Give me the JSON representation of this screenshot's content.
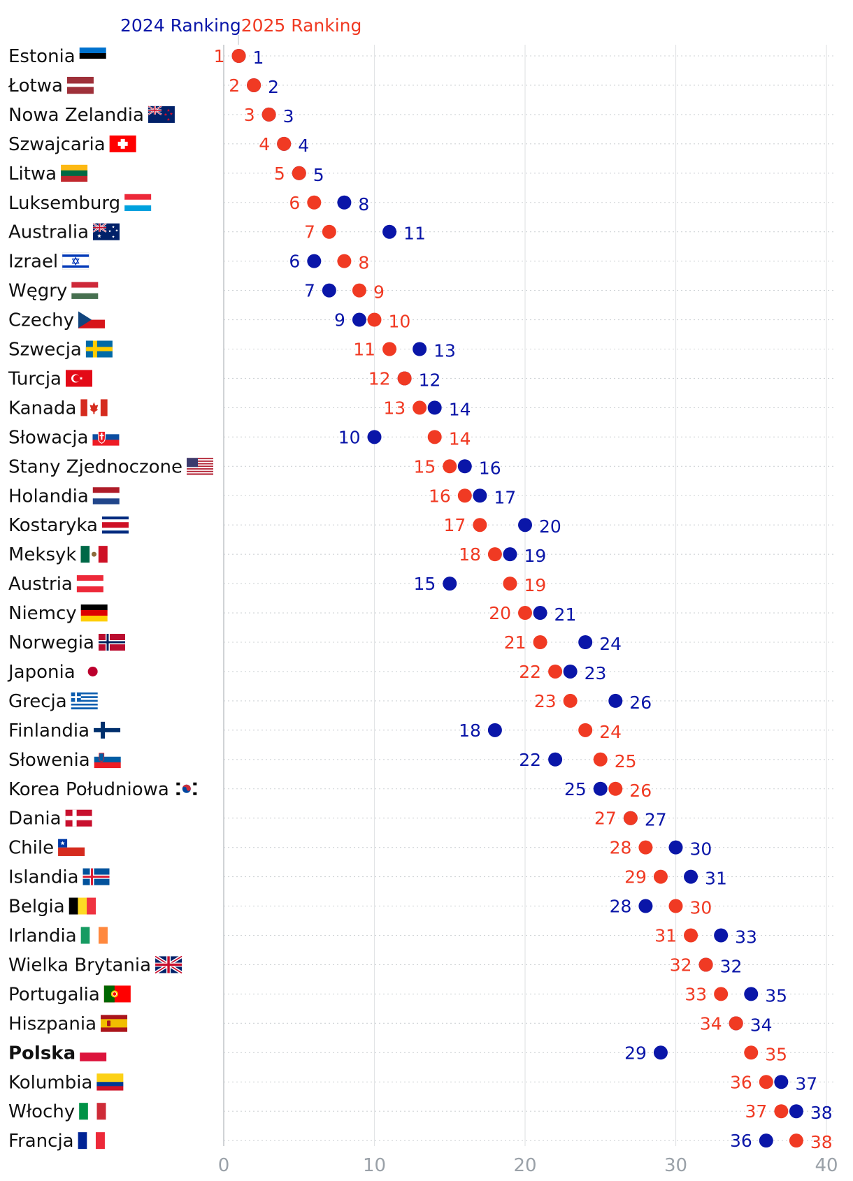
{
  "chart_data": {
    "type": "dumbbell",
    "title": "",
    "legend": [
      {
        "name": "2024 Ranking",
        "color": "#0a16a8"
      },
      {
        "name": "2025 Ranking",
        "color": "#f03a23"
      }
    ],
    "legend_position": "top-left",
    "xlim": [
      0,
      40
    ],
    "xticks": [
      "0",
      "10",
      "20",
      "30",
      "40"
    ],
    "grid": true,
    "highlight_country": "Polska",
    "colors": {
      "r2024": "#0a16a8",
      "r2025": "#f03a23",
      "tick": "#9aa1a8",
      "grid": "#cfd3d6",
      "axis": "#c4c8cc"
    },
    "rows": [
      {
        "country": "Estonia",
        "flag": "estonia-flag",
        "r2024": 1,
        "r2025": 1,
        "l2024": "1",
        "l2025": "1"
      },
      {
        "country": "Łotwa",
        "flag": "latvia-flag",
        "r2024": 2,
        "r2025": 2,
        "l2024": "2",
        "l2025": "2"
      },
      {
        "country": "Nowa Zelandia",
        "flag": "new-zealand-flag",
        "r2024": 3,
        "r2025": 3,
        "l2024": "3",
        "l2025": "3"
      },
      {
        "country": "Szwajcaria",
        "flag": "switzerland-flag",
        "r2024": 4,
        "r2025": 4,
        "l2024": "4",
        "l2025": "4"
      },
      {
        "country": "Litwa",
        "flag": "lithuania-flag",
        "r2024": 5,
        "r2025": 5,
        "l2024": "5",
        "l2025": "5"
      },
      {
        "country": "Luksemburg",
        "flag": "luxembourg-flag",
        "r2024": 8,
        "r2025": 6,
        "l2024": "8",
        "l2025": "6"
      },
      {
        "country": "Australia",
        "flag": "australia-flag",
        "r2024": 11,
        "r2025": 7,
        "l2024": "11",
        "l2025": "7"
      },
      {
        "country": "Izrael",
        "flag": "israel-flag",
        "r2024": 6,
        "r2025": 8,
        "l2024": "6",
        "l2025": "8"
      },
      {
        "country": "Węgry",
        "flag": "hungary-flag",
        "r2024": 7,
        "r2025": 9,
        "l2024": "7",
        "l2025": "9"
      },
      {
        "country": "Czechy",
        "flag": "czechia-flag",
        "r2024": 9,
        "r2025": 10,
        "l2024": "9",
        "l2025": "10"
      },
      {
        "country": "Szwecja",
        "flag": "sweden-flag",
        "r2024": 13,
        "r2025": 11,
        "l2024": "13",
        "l2025": "11"
      },
      {
        "country": "Turcja",
        "flag": "turkey-flag",
        "r2024": 12,
        "r2025": 12,
        "l2024": "12",
        "l2025": "12"
      },
      {
        "country": "Kanada",
        "flag": "canada-flag",
        "r2024": 14,
        "r2025": 13,
        "l2024": "14",
        "l2025": "13"
      },
      {
        "country": "Słowacja",
        "flag": "slovakia-flag",
        "r2024": 10,
        "r2025": 14,
        "l2024": "10",
        "l2025": "14"
      },
      {
        "country": "Stany Zjednoczone",
        "flag": "usa-flag",
        "r2024": 16,
        "r2025": 15,
        "l2024": "16",
        "l2025": "15"
      },
      {
        "country": "Holandia",
        "flag": "netherlands-flag",
        "r2024": 17,
        "r2025": 16,
        "l2024": "17",
        "l2025": "16"
      },
      {
        "country": "Kostaryka",
        "flag": "costa-rica-flag",
        "r2024": 20,
        "r2025": 17,
        "l2024": "20",
        "l2025": "17"
      },
      {
        "country": "Meksyk",
        "flag": "mexico-flag",
        "r2024": 19,
        "r2025": 18,
        "l2024": "19",
        "l2025": "18"
      },
      {
        "country": "Austria",
        "flag": "austria-flag",
        "r2024": 15,
        "r2025": 19,
        "l2024": "15",
        "l2025": "19"
      },
      {
        "country": "Niemcy",
        "flag": "germany-flag",
        "r2024": 21,
        "r2025": 20,
        "l2024": "21",
        "l2025": "20"
      },
      {
        "country": "Norwegia",
        "flag": "norway-flag",
        "r2024": 24,
        "r2025": 21,
        "l2024": "24",
        "l2025": "21"
      },
      {
        "country": "Japonia",
        "flag": "japan-flag",
        "r2024": 23,
        "r2025": 22,
        "l2024": "23",
        "l2025": "22"
      },
      {
        "country": "Grecja",
        "flag": "greece-flag",
        "r2024": 26,
        "r2025": 23,
        "l2024": "26",
        "l2025": "23"
      },
      {
        "country": "Finlandia",
        "flag": "finland-flag",
        "r2024": 18,
        "r2025": 24,
        "l2024": "18",
        "l2025": "24"
      },
      {
        "country": "Słowenia",
        "flag": "slovenia-flag",
        "r2024": 22,
        "r2025": 25,
        "l2024": "22",
        "l2025": "25"
      },
      {
        "country": "Korea Południowa",
        "flag": "south-korea-flag",
        "r2024": 25,
        "r2025": 26,
        "l2024": "25",
        "l2025": "26"
      },
      {
        "country": "Dania",
        "flag": "denmark-flag",
        "r2024": 27,
        "r2025": 27,
        "l2024": "27",
        "l2025": "27"
      },
      {
        "country": "Chile",
        "flag": "chile-flag",
        "r2024": 30,
        "r2025": 28,
        "l2024": "30",
        "l2025": "28"
      },
      {
        "country": "Islandia",
        "flag": "iceland-flag",
        "r2024": 31,
        "r2025": 29,
        "l2024": "31",
        "l2025": "29"
      },
      {
        "country": "Belgia",
        "flag": "belgium-flag",
        "r2024": 28,
        "r2025": 30,
        "l2024": "28",
        "l2025": "30"
      },
      {
        "country": "Irlandia",
        "flag": "ireland-flag",
        "r2024": 33,
        "r2025": 31,
        "l2024": "33",
        "l2025": "31"
      },
      {
        "country": "Wielka Brytania",
        "flag": "uk-flag",
        "r2024": 32,
        "r2025": 32,
        "l2024": "32",
        "l2025": "32"
      },
      {
        "country": "Portugalia",
        "flag": "portugal-flag",
        "r2024": 35,
        "r2025": 33,
        "l2024": "35",
        "l2025": "33"
      },
      {
        "country": "Hiszpania",
        "flag": "spain-flag",
        "r2024": 34,
        "r2025": 34,
        "l2024": "34",
        "l2025": "34"
      },
      {
        "country": "Polska",
        "flag": "poland-flag",
        "r2024": 29,
        "r2025": 35,
        "l2024": "29",
        "l2025": "35"
      },
      {
        "country": "Kolumbia",
        "flag": "colombia-flag",
        "r2024": 37,
        "r2025": 36,
        "l2024": "37",
        "l2025": "36"
      },
      {
        "country": "Włochy",
        "flag": "italy-flag",
        "r2024": 38,
        "r2025": 37,
        "l2024": "38",
        "l2025": "37"
      },
      {
        "country": "Francja",
        "flag": "france-flag",
        "r2024": 36,
        "r2025": 38,
        "l2024": "36",
        "l2025": "38"
      }
    ]
  }
}
